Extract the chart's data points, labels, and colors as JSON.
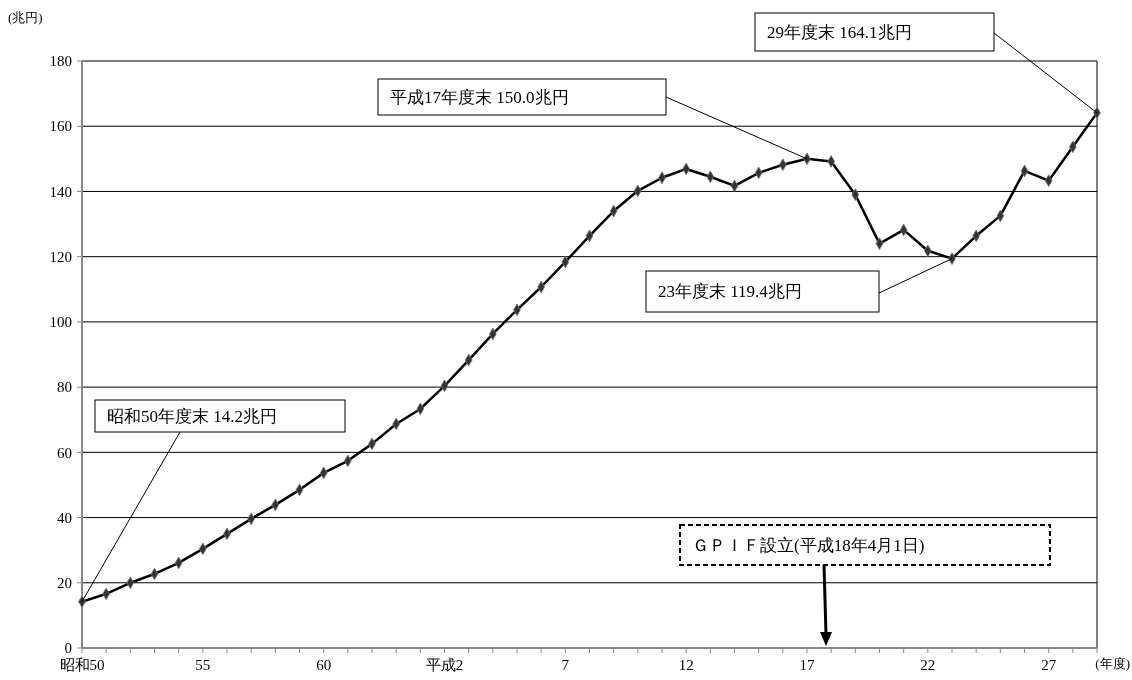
{
  "chart_data": {
    "type": "line",
    "ylabel": "(兆円)",
    "xlabel": "(年度)",
    "categories": [
      "昭和50",
      null,
      null,
      null,
      null,
      "55",
      null,
      null,
      null,
      null,
      "60",
      null,
      null,
      null,
      null,
      "平成2",
      null,
      null,
      null,
      null,
      "7",
      null,
      null,
      null,
      null,
      "12",
      null,
      null,
      null,
      null,
      "17",
      null,
      null,
      null,
      null,
      "22",
      null,
      null,
      null,
      null,
      "27",
      null,
      null
    ],
    "series": [
      {
        "color": "#000000",
        "values": [
          14.2,
          16.6,
          20.0,
          22.7,
          26.1,
          30.4,
          35.0,
          39.6,
          43.9,
          48.5,
          53.7,
          57.4,
          62.6,
          68.7,
          73.3,
          80.4,
          88.3,
          96.3,
          103.7,
          110.7,
          118.4,
          126.4,
          134.0,
          140.2,
          144.2,
          146.9,
          144.5,
          141.7,
          145.7,
          148.2,
          150.0,
          149.2,
          139.0,
          124.0,
          128.2,
          121.8,
          119.4,
          126.4,
          132.5,
          146.3,
          143.3,
          153.7,
          164.1
        ]
      }
    ],
    "ylim": [
      0,
      180
    ],
    "yticks": [
      0,
      20,
      40,
      60,
      80,
      100,
      120,
      140,
      160,
      180
    ],
    "grid": "y",
    "marker": "diamond",
    "line_style": "solid",
    "annotations": [
      {
        "text": "昭和50年度末 14.2兆円",
        "x": "昭和50",
        "y": 14.2
      },
      "平成17年度末 150.0兆円",
      "23年度末 119.4兆円",
      "29年度末 164.1兆円",
      "ＧＰＩＦ設立(平成18年4月1日)"
    ]
  }
}
